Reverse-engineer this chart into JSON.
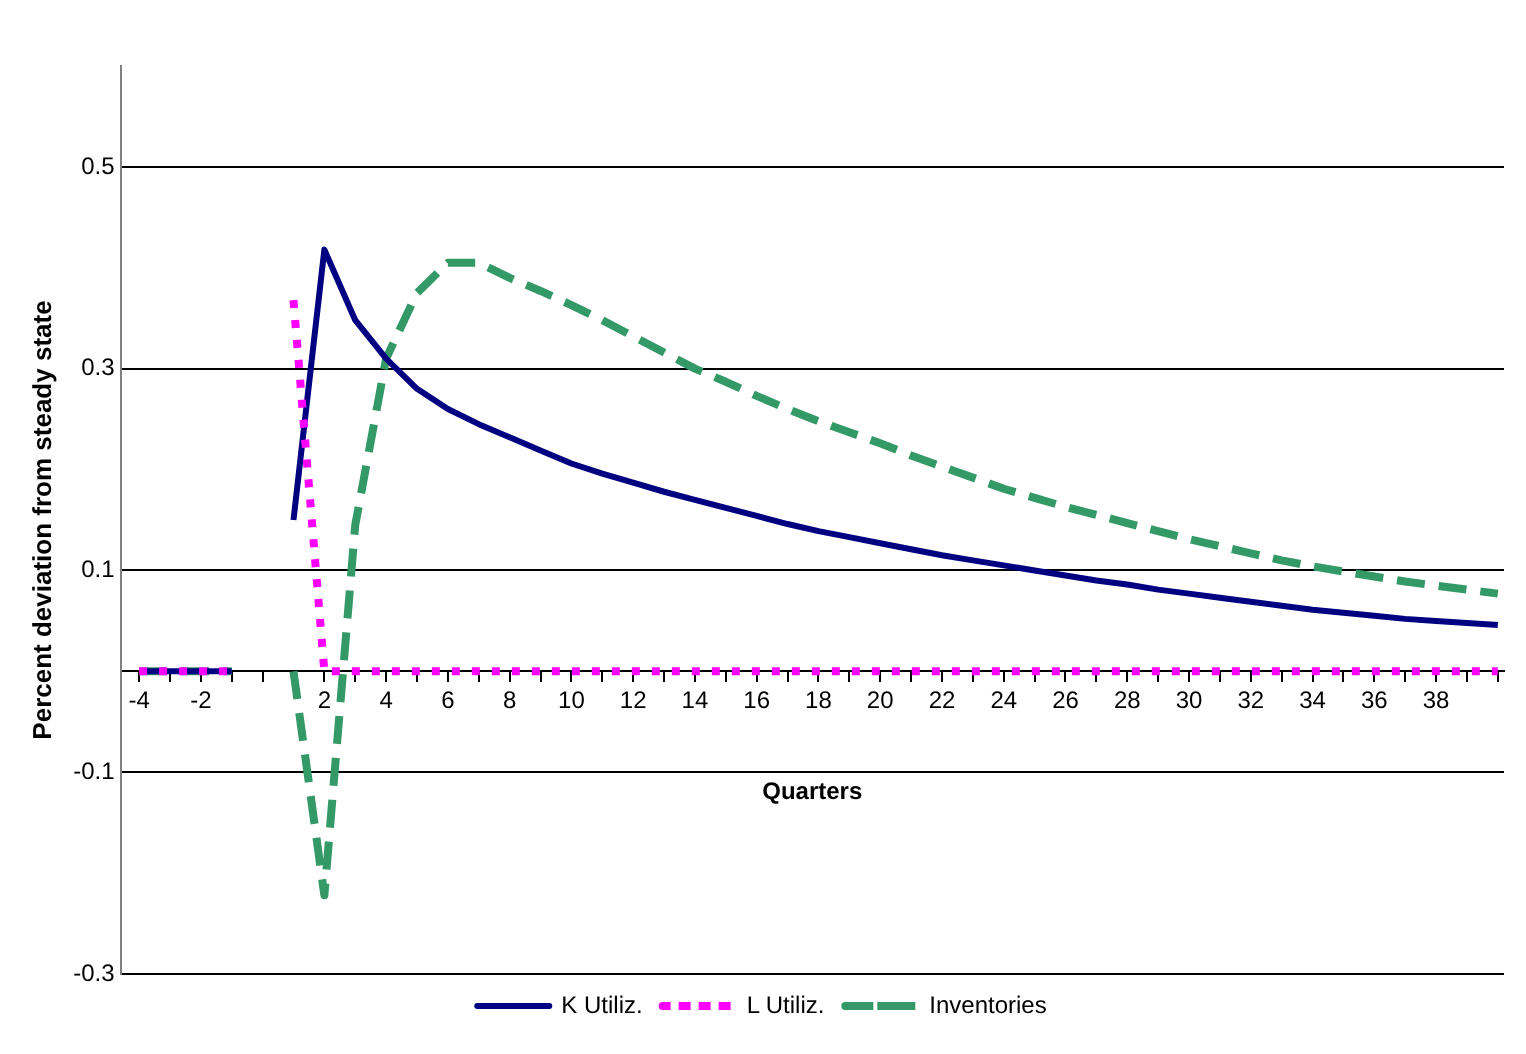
{
  "chart_data": {
    "type": "line",
    "xlabel": "Quarters",
    "ylabel": "Percent deviation from steady state",
    "x": [
      -4,
      -3,
      -2,
      -1,
      0,
      1,
      2,
      3,
      4,
      5,
      6,
      7,
      8,
      9,
      10,
      11,
      12,
      13,
      14,
      15,
      16,
      17,
      18,
      19,
      20,
      21,
      22,
      23,
      24,
      25,
      26,
      27,
      28,
      29,
      30,
      31,
      32,
      33,
      34,
      35,
      36,
      37,
      38,
      39,
      40
    ],
    "series": [
      {
        "name": "K Utiliz.",
        "color": "#000080",
        "line_style": "solid",
        "values": [
          0,
          0,
          0,
          0,
          null,
          0.15,
          0.418,
          0.348,
          0.31,
          0.28,
          0.26,
          0.245,
          0.232,
          0.219,
          0.206,
          0.196,
          0.187,
          0.178,
          0.17,
          0.162,
          0.154,
          0.146,
          0.139,
          0.133,
          0.127,
          0.121,
          0.115,
          0.11,
          0.105,
          0.1,
          0.095,
          0.09,
          0.086,
          0.081,
          0.077,
          0.073,
          0.069,
          0.065,
          0.061,
          0.058,
          0.055,
          0.052,
          0.05,
          0.048,
          0.046
        ]
      },
      {
        "name": "L Utiliz.",
        "color": "#ff00ff",
        "line_style": "dotted",
        "values": [
          0,
          0,
          0,
          0,
          null,
          0.368,
          0,
          0,
          0,
          0,
          0,
          0,
          0,
          0,
          0,
          0,
          0,
          0,
          0,
          0,
          0,
          0,
          0,
          0,
          0,
          0,
          0,
          0,
          0,
          0,
          0,
          0,
          0,
          0,
          0,
          0,
          0,
          0,
          0,
          0,
          0,
          0,
          0,
          0,
          0
        ]
      },
      {
        "name": "Inventories",
        "color": "#339966",
        "line_style": "dashed",
        "values": [
          0,
          0,
          0,
          0,
          null,
          0,
          -0.222,
          0.145,
          0.31,
          0.375,
          0.405,
          0.405,
          0.39,
          0.377,
          0.363,
          0.348,
          0.332,
          0.316,
          0.3,
          0.287,
          0.273,
          0.26,
          0.248,
          0.237,
          0.226,
          0.214,
          0.203,
          0.192,
          0.181,
          0.172,
          0.163,
          0.155,
          0.147,
          0.139,
          0.131,
          0.124,
          0.117,
          0.11,
          0.104,
          0.099,
          0.094,
          0.089,
          0.085,
          0.081,
          0.077
        ]
      }
    ],
    "xlim": [
      -4.6,
      40.2
    ],
    "xticks": [
      -4,
      {
        "value": -3,
        "label": null
      },
      -2,
      {
        "value": -1,
        "label": null
      },
      {
        "value": 0,
        "label": null
      },
      {
        "value": 1,
        "label": null
      },
      2,
      {
        "value": 3,
        "label": null
      },
      4,
      {
        "value": 5,
        "label": null
      },
      6,
      {
        "value": 7,
        "label": null
      },
      8,
      {
        "value": 9,
        "label": null
      },
      10,
      {
        "value": 11,
        "label": null
      },
      12,
      {
        "value": 13,
        "label": null
      },
      14,
      {
        "value": 15,
        "label": null
      },
      16,
      {
        "value": 17,
        "label": null
      },
      18,
      {
        "value": 19,
        "label": null
      },
      20,
      {
        "value": 21,
        "label": null
      },
      22,
      {
        "value": 23,
        "label": null
      },
      24,
      {
        "value": 25,
        "label": null
      },
      26,
      {
        "value": 27,
        "label": null
      },
      28,
      {
        "value": 29,
        "label": null
      },
      30,
      {
        "value": 31,
        "label": null
      },
      32,
      {
        "value": 33,
        "label": null
      },
      34,
      {
        "value": 35,
        "label": null
      },
      36,
      {
        "value": 37,
        "label": null
      },
      38,
      {
        "value": 39,
        "label": null
      },
      {
        "value": 40,
        "label": null
      }
    ],
    "ylim": [
      -0.3,
      0.6
    ],
    "yticks": [
      -0.3,
      -0.1,
      0.1,
      0.3,
      0.5
    ],
    "grid": "y",
    "legend": "bottom",
    "marker": "none"
  }
}
